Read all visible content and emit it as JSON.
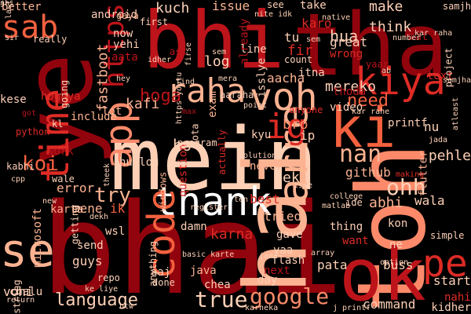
{
  "background": "#000000",
  "palette": [
    "#fdd0b6",
    "#fcb392",
    "#fc8a6a",
    "#f4613f",
    "#de2b25",
    "#bc141a",
    "#91040d",
    "#67000d",
    "#ffffff"
  ],
  "words": [
    {
      "text": "mein",
      "color": "#fdd0b6",
      "vertical": false
    },
    {
      "text": "bhai",
      "color": "#91040d",
      "vertical": false
    },
    {
      "text": "bhi",
      "color": "#bc141a",
      "vertical": false
    },
    {
      "text": "tha",
      "color": "#91040d",
      "vertical": false
    },
    {
      "text": "ye",
      "color": "#91040d",
      "vertical": true
    },
    {
      "text": "toh",
      "color": "#fc8a6a",
      "vertical": true
    },
    {
      "text": "ok",
      "color": "#bc141a",
      "vertical": false
    },
    {
      "text": "se",
      "color": "#fcb392",
      "vertical": false
    },
    {
      "text": "ki",
      "color": "#f4613f",
      "vertical": false
    },
    {
      "text": "hai",
      "color": "#fcb392",
      "vertical": true
    },
    {
      "text": "thank",
      "color": "#ffffff",
      "vertical": false
    },
    {
      "text": "raha",
      "color": "#fcb392",
      "vertical": false
    },
    {
      "text": "voh",
      "color": "#fcb392",
      "vertical": false
    },
    {
      "text": "kiya",
      "color": "#de2b25",
      "vertical": false
    },
    {
      "text": "app",
      "color": "#fc8a6a",
      "vertical": true
    },
    {
      "text": "time",
      "color": "#de2b25",
      "vertical": true
    },
    {
      "text": "code",
      "color": "#f4613f",
      "vertical": true
    },
    {
      "text": "arre",
      "color": "#fcb392",
      "vertical": true
    },
    {
      "text": "sab",
      "color": "#f4613f",
      "vertical": false
    },
    {
      "text": "pe",
      "color": "#de2b25",
      "vertical": false
    },
    {
      "text": "ig",
      "color": "#de2b25",
      "vertical": false
    },
    {
      "text": "https",
      "color": "#bc141a",
      "vertical": true
    },
    {
      "text": "hoga",
      "color": "#bc141a",
      "vertical": false
    },
    {
      "text": "koi",
      "color": "#f4613f",
      "vertical": false
    },
    {
      "text": "language",
      "color": "#fdd0b6",
      "vertical": false
    },
    {
      "text": "google",
      "color": "#fc8a6a",
      "vertical": false
    },
    {
      "text": "true",
      "color": "#fdd0b6",
      "vertical": false
    },
    {
      "text": "nan",
      "color": "#fcb392",
      "vertical": false
    },
    {
      "text": "ohh",
      "color": "#fdd0b6",
      "vertical": false
    },
    {
      "text": "bro",
      "color": "#fc8a6a",
      "vertical": false
    },
    {
      "text": "ho",
      "color": "#fdd0b6",
      "vertical": false
    },
    {
      "text": "try",
      "color": "#fcb392",
      "vertical": false
    },
    {
      "text": "need",
      "color": "#f4613f",
      "vertical": false
    },
    {
      "text": "mereko",
      "color": "#fdd0b6",
      "vertical": false
    },
    {
      "text": "make",
      "color": "#fdd0b6",
      "vertical": false
    },
    {
      "text": "think",
      "color": "#fdd0b6",
      "vertical": false
    },
    {
      "text": "kuch",
      "color": "#fdd0b6",
      "vertical": false
    },
    {
      "text": "issue",
      "color": "#fcb392",
      "vertical": false
    },
    {
      "text": "fastboot",
      "color": "#fcb392",
      "vertical": true
    },
    {
      "text": "kafi",
      "color": "#fcb392",
      "vertical": false
    },
    {
      "text": "lot",
      "color": "#fcb392",
      "vertical": false
    },
    {
      "text": "include",
      "color": "#fcb392",
      "vertical": false
    },
    {
      "text": "mene",
      "color": "#fcb392",
      "vertical": false
    },
    {
      "text": "ik",
      "color": "#f4613f",
      "vertical": false
    },
    {
      "text": "karta",
      "color": "#fcb392",
      "vertical": false
    },
    {
      "text": "error",
      "color": "#fcb392",
      "vertical": false
    },
    {
      "text": "work",
      "color": "#bc141a",
      "vertical": false
    },
    {
      "text": "github",
      "color": "#fcb392",
      "vertical": false
    },
    {
      "text": "abhi",
      "color": "#fcb392",
      "vertical": false
    },
    {
      "text": "wala",
      "color": "#fdd0b6",
      "vertical": false
    },
    {
      "text": "best",
      "color": "#de2b25",
      "vertical": false
    },
    {
      "text": "never",
      "color": "#fcb392",
      "vertical": false
    },
    {
      "text": "ek",
      "color": "#fdd0b6",
      "vertical": false
    },
    {
      "text": "kyu",
      "color": "#fdd0b6",
      "vertical": false
    },
    {
      "text": "ip",
      "color": "#fdd0b6",
      "vertical": false
    },
    {
      "text": "log",
      "color": "#fdd0b6",
      "vertical": false
    },
    {
      "text": "aacha",
      "color": "#fcb392",
      "vertical": false
    },
    {
      "text": "hua",
      "color": "#fdd0b6",
      "vertical": false
    },
    {
      "text": "tu",
      "color": "#fdd0b6",
      "vertical": false
    },
    {
      "text": "fir",
      "color": "#de2b25",
      "vertical": false
    },
    {
      "text": "now",
      "color": "#fdd0b6",
      "vertical": false
    },
    {
      "text": "yehi",
      "color": "#fdd0b6",
      "vertical": false
    },
    {
      "text": "android",
      "color": "#fdd0b6",
      "vertical": false
    },
    {
      "text": "better",
      "color": "#fcb392",
      "vertical": false
    },
    {
      "text": "karna",
      "color": "#de2b25",
      "vertical": false
    },
    {
      "text": "yaa",
      "color": "#fdd0b6",
      "vertical": false
    },
    {
      "text": "gave",
      "color": "#fdd0b6",
      "vertical": false
    },
    {
      "text": "pata",
      "color": "#fdd0b6",
      "vertical": false
    },
    {
      "text": "command",
      "color": "#fdd0b6",
      "vertical": false
    },
    {
      "text": "start",
      "color": "#fdd0b6",
      "vertical": false
    },
    {
      "text": "nahi",
      "color": "#de2b25",
      "vertical": false
    },
    {
      "text": "kidher",
      "color": "#fdd0b6",
      "vertical": false
    },
    {
      "text": "buss",
      "color": "#fdd0b6",
      "vertical": false
    },
    {
      "text": "thing",
      "color": "#fdd0b6",
      "vertical": false
    },
    {
      "text": "want",
      "color": "#de2b25",
      "vertical": false
    },
    {
      "text": "kon",
      "color": "#fdd0b6",
      "vertical": false
    },
    {
      "text": "ne",
      "color": "#fdd0b6",
      "vertical": false
    },
    {
      "text": "guys",
      "color": "#fdd0b6",
      "vertical": false
    },
    {
      "text": "wsl",
      "color": "#fdd0b6",
      "vertical": false
    },
    {
      "text": "send",
      "color": "#fdd0b6",
      "vertical": false
    },
    {
      "text": "chalu",
      "color": "#fdd0b6",
      "vertical": false
    },
    {
      "text": "damn",
      "color": "#fdd0b6",
      "vertical": false
    },
    {
      "text": "java",
      "color": "#fcb392",
      "vertical": false
    },
    {
      "text": "aaj",
      "color": "#fdd0b6",
      "vertical": false
    },
    {
      "text": "chea",
      "color": "#fdd0b6",
      "vertical": false
    },
    {
      "text": "day",
      "color": "#fdd0b6",
      "vertical": false
    },
    {
      "text": "next",
      "color": "#bc141a",
      "vertical": false
    },
    {
      "text": "flash",
      "color": "#fdd0b6",
      "vertical": false
    },
    {
      "text": "tried",
      "color": "#fcb392",
      "vertical": false
    },
    {
      "text": "gaya",
      "color": "#fcb392",
      "vertical": false
    },
    {
      "text": "take",
      "color": "#fdd0b6",
      "vertical": false
    },
    {
      "text": "karo",
      "color": "#de2b25",
      "vertical": false
    },
    {
      "text": "great",
      "color": "#fdd0b6",
      "vertical": false
    },
    {
      "text": "wrong",
      "color": "#de2b25",
      "vertical": false
    },
    {
      "text": "count",
      "color": "#fdd0b6",
      "vertical": false
    },
    {
      "text": "itna",
      "color": "#fdd0b6",
      "vertical": false
    },
    {
      "text": "line",
      "color": "#fdd0b6",
      "vertical": false
    },
    {
      "text": "nu",
      "color": "#fdd0b6",
      "vertical": false
    },
    {
      "text": "printf",
      "color": "#fdd0b6",
      "vertical": false
    },
    {
      "text": "pehle",
      "color": "#fdd0b6",
      "vertical": false
    },
    {
      "text": "flutter",
      "color": "#fcb392",
      "vertical": true
    },
    {
      "text": "python",
      "color": "#de2b25",
      "vertical": false
    },
    {
      "text": "vohi",
      "color": "#fdd0b6",
      "vertical": false
    },
    {
      "text": "microsoft",
      "color": "#fcb392",
      "vertical": true
    },
    {
      "text": "string",
      "color": "#fdd0b6",
      "vertical": true
    },
    {
      "text": "kese",
      "color": "#fdd0b6",
      "vertical": false
    },
    {
      "text": "hogaya",
      "color": "#de2b25",
      "vertical": false
    },
    {
      "text": "really",
      "color": "#fdd0b6",
      "vertical": false
    },
    {
      "text": "text",
      "color": "#de2b25",
      "vertical": false
    },
    {
      "text": "samjh",
      "color": "#fdd0b6",
      "vertical": false
    },
    {
      "text": "see",
      "color": "#fdd0b6",
      "vertical": false
    },
    {
      "text": "sir",
      "color": "#fdd0b6",
      "vertical": false
    },
    {
      "text": "humlog",
      "color": "#fdd0b6",
      "vertical": false
    },
    {
      "text": "question",
      "color": "#de2b25",
      "vertical": true
    },
    {
      "text": "windows",
      "color": "#fcb392",
      "vertical": true
    },
    {
      "text": "hota",
      "color": "#fdd0b6",
      "vertical": true
    },
    {
      "text": "actually",
      "color": "#de2b25",
      "vertical": true
    },
    {
      "text": "isslye",
      "color": "#fdd0b6",
      "vertical": true
    },
    {
      "text": "exam",
      "color": "#fcb392",
      "vertical": true
    },
    {
      "text": "anyone",
      "color": "#de2b25",
      "vertical": false
    },
    {
      "text": "thoda",
      "color": "#bc141a",
      "vertical": false
    },
    {
      "text": "video",
      "color": "#fdd0b6",
      "vertical": false
    },
    {
      "text": "ask",
      "color": "#bc141a",
      "vertical": false
    },
    {
      "text": "already",
      "color": "#bc141a",
      "vertical": true
    },
    {
      "text": "aata",
      "color": "#bc141a",
      "vertical": false
    },
    {
      "text": "done",
      "color": "#fdd0b6",
      "vertical": false
    },
    {
      "text": "yaar",
      "color": "#bc141a",
      "vertical": false
    },
    {
      "text": "mat",
      "color": "#bc141a",
      "vertical": false
    },
    {
      "text": "project",
      "color": "#fdd0b6",
      "vertical": true
    },
    {
      "text": "ab",
      "color": "#fdd0b6",
      "vertical": false
    },
    {
      "text": "first",
      "color": "#fdd0b6",
      "vertical": false
    },
    {
      "text": "idher",
      "color": "#fdd0b6",
      "vertical": false
    },
    {
      "text": "hey",
      "color": "#fdd0b6",
      "vertical": false
    },
    {
      "text": "find",
      "color": "#fdd0b6",
      "vertical": false
    },
    {
      "text": "kar rahe",
      "color": "#fdd0b6",
      "vertical": false
    },
    {
      "text": "kar raha",
      "color": "#fdd0b6",
      "vertical": false
    },
    {
      "text": "number",
      "color": "#fdd0b6",
      "vertical": false
    },
    {
      "text": "nite idk",
      "color": "#fdd0b6",
      "vertical": false
    },
    {
      "text": "native",
      "color": "#fdd0b6",
      "vertical": false
    },
    {
      "text": "sem",
      "color": "#fdd0b6",
      "vertical": false
    },
    {
      "text": "sem",
      "color": "#fdd0b6",
      "vertical": false
    },
    {
      "text": "mera",
      "color": "#fdd0b6",
      "vertical": false
    },
    {
      "text": "aaraha",
      "color": "#fdd0b6",
      "vertical": false
    },
    {
      "text": "point",
      "color": "#fdd0b6",
      "vertical": false
    },
    {
      "text": "max",
      "color": "#bc141a",
      "vertical": false
    },
    {
      "text": "program",
      "color": "#fdd0b6",
      "vertical": false
    },
    {
      "text": "solution",
      "color": "#fdd0b6",
      "vertical": false
    },
    {
      "text": "going",
      "color": "#fdd0b6",
      "vertical": true
    },
    {
      "text": "got",
      "color": "#bc141a",
      "vertical": false
    },
    {
      "text": "kl",
      "color": "#fdd0b6",
      "vertical": false
    },
    {
      "text": "wale",
      "color": "#fdd0b6",
      "vertical": false
    },
    {
      "text": "cpp",
      "color": "#fdd0b6",
      "vertical": false
    },
    {
      "text": "kabhi",
      "color": "#fdd0b6",
      "vertical": false
    },
    {
      "text": "theek",
      "color": "#fdd0b6",
      "vertical": true
    },
    {
      "text": "new",
      "color": "#fdd0b6",
      "vertical": false
    },
    {
      "text": "dekh",
      "color": "#fdd0b6",
      "vertical": false
    },
    {
      "text": "register",
      "color": "#fdd0b6",
      "vertical": false
    },
    {
      "text": "ten",
      "color": "#fdd0b6",
      "vertical": false
    },
    {
      "text": "college",
      "color": "#fdd0b6",
      "vertical": false
    },
    {
      "text": "matlab",
      "color": "#fdd0b6",
      "vertical": false
    },
    {
      "text": "ide",
      "color": "#fdd0b6",
      "vertical": false
    },
    {
      "text": "repo",
      "color": "#fdd0b6",
      "vertical": false
    },
    {
      "text": "ke liye",
      "color": "#fdd0b6",
      "vertical": false
    },
    {
      "text": "return",
      "color": "#fdd0b6",
      "vertical": false
    },
    {
      "text": "btw",
      "color": "#fdd0b6",
      "vertical": false
    },
    {
      "text": "karneka",
      "color": "#fdd0b6",
      "vertical": false
    },
    {
      "text": "j printf",
      "color": "#fdd0b6",
      "vertical": false
    },
    {
      "text": "jaa",
      "color": "#fdd0b6",
      "vertical": false
    },
    {
      "text": "basic karte",
      "color": "#fdd0b6",
      "vertical": false
    },
    {
      "text": "array",
      "color": "#fdd0b6",
      "vertical": false
    },
    {
      "text": "simple",
      "color": "#fdd0b6",
      "vertical": false
    },
    {
      "text": "option",
      "color": "#fdd0b6",
      "vertical": false
    },
    {
      "text": "making",
      "color": "#de2b25",
      "vertical": false
    },
    {
      "text": "jada",
      "color": "#fdd0b6",
      "vertical": false
    },
    {
      "text": "atleast",
      "color": "#fdd0b6",
      "vertical": true
    },
    {
      "text": "samjha",
      "color": "#fdd0b6",
      "vertical": false
    },
    {
      "text": "isme",
      "color": "#fdd0b6",
      "vertical": false
    },
    {
      "text": "getting",
      "color": "#fdd0b6",
      "vertical": true
    },
    {
      "text": "anything",
      "color": "#fdd0b6",
      "vertical": true
    },
    {
      "text": "firse",
      "color": "#fdd0b6",
      "vertical": true
    },
    {
      "text": "https youtu",
      "color": "#fdd0b6",
      "vertical": true
    },
    {
      "text": "last",
      "color": "#fdd0b6",
      "vertical": true
    },
    {
      "text": "nhi",
      "color": "#fdd0b6",
      "vertical": false
    },
    {
      "text": "j",
      "color": "#fdd0b6",
      "vertical": false
    }
  ]
}
